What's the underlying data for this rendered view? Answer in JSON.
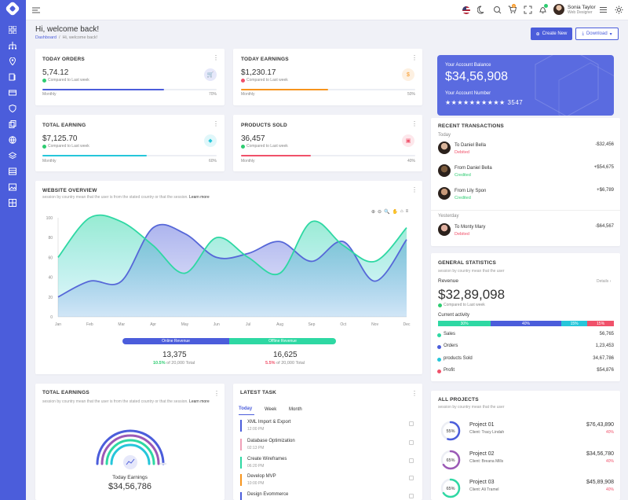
{
  "topbar": {
    "user_name": "Sonia Taylor",
    "user_role": "Web Designer",
    "cart_badge": "5"
  },
  "page": {
    "title": "Hi, welcome back!",
    "breadcrumb_home": "Dashboard",
    "breadcrumb_current": "Hi, welcome back!",
    "create_label": "Create New",
    "download_label": "Download"
  },
  "stats": [
    {
      "title": "TODAY ORDERS",
      "value": "5,74.12",
      "compare": "Compared to Last week",
      "bar_label": "Monthly",
      "percent": "70%",
      "fill": 0.7,
      "color": "#4b5ddb",
      "trend": "up"
    },
    {
      "title": "TODAY EARNINGS",
      "value": "$1,230.17",
      "compare": "Compared to Last week",
      "bar_label": "Monthly",
      "percent": "50%",
      "fill": 0.5,
      "color": "#f7941d",
      "trend": "down"
    },
    {
      "title": "TOTAL EARNING",
      "value": "$7,125.70",
      "compare": "Compared to Last week",
      "bar_label": "Monthly",
      "percent": "60%",
      "fill": 0.6,
      "color": "#26c6da",
      "trend": "up"
    },
    {
      "title": "PRODUCTS SOLD",
      "value": "36,457",
      "compare": "Compared to Last week",
      "bar_label": "Monthly",
      "percent": "40%",
      "fill": 0.4,
      "color": "#f0516a",
      "trend": "up"
    }
  ],
  "overview": {
    "title": "WEBSITE OVERVIEW",
    "subtitle": "session by country mean that the user is from the stated country or that the session.",
    "learn_more": "Learn more",
    "online_label": "Online Revenue",
    "offline_label": "Offline Revenue",
    "online_value": "13,375",
    "online_pct": "10.5%",
    "online_target": "of 20,000 Total",
    "offline_value": "16,625",
    "offline_pct": "5.5%",
    "offline_target": "of 20,000 Total"
  },
  "chart_data": {
    "type": "area",
    "categories": [
      "Jan",
      "Feb",
      "Mar",
      "Apr",
      "May",
      "Jun",
      "Jul",
      "Aug",
      "Sep",
      "Oct",
      "Nov",
      "Dec"
    ],
    "yticks": [
      "0",
      "20",
      "40",
      "60",
      "80",
      "100"
    ],
    "ylim": [
      0,
      100
    ],
    "series": [
      {
        "values": [
          20,
          36,
          36,
          90,
          84,
          60,
          64,
          76,
          56,
          76,
          36,
          78
        ],
        "color": "#5667d8"
      },
      {
        "values": [
          60,
          100,
          96,
          72,
          44,
          80,
          60,
          44,
          96,
          72,
          56,
          90
        ],
        "color": "#2ed8a3"
      }
    ]
  },
  "balance": {
    "label": "Your Account Balance",
    "amount": "$34,56,908",
    "number_label": "Your Account Number",
    "number": "★★★★★★★★★★ 3547"
  },
  "transactions": {
    "title": "RECENT TRANSACTIONS",
    "groups": [
      "Today",
      "Yesterday"
    ],
    "items": [
      {
        "name": "To Daniel Bella",
        "status": "Debited",
        "amount": "-$32,456",
        "status_color": "#f0516a"
      },
      {
        "name": "From Daniel Bella",
        "status": "Credited",
        "amount": "+$54,675",
        "status_color": "#2ecc71"
      },
      {
        "name": "From Lily Spon",
        "status": "Credited",
        "amount": "+$6,789",
        "status_color": "#2ecc71"
      },
      {
        "name": "To Monty Mary",
        "status": "Debited",
        "amount": "-$64,567",
        "status_color": "#f0516a"
      }
    ]
  },
  "general": {
    "title": "GENERAL STATISTICS",
    "subtitle": "session by country mean that the user",
    "revenue_label": "Revenue",
    "details": "Details ›",
    "revenue": "$32,89,098",
    "compare": "Compared to Last week",
    "activity_label": "Current activity",
    "activity": [
      {
        "pct": "30%",
        "fill": 0.3,
        "color": "#2ed8a3"
      },
      {
        "pct": "40%",
        "fill": 0.4,
        "color": "#4b5ddb"
      },
      {
        "pct": "15%",
        "fill": 0.15,
        "color": "#26c6da"
      },
      {
        "pct": "15%",
        "fill": 0.15,
        "color": "#f0516a"
      }
    ],
    "rows": [
      {
        "label": "Sales",
        "value": "56,765",
        "color": "#2ed8a3"
      },
      {
        "label": "Orders",
        "value": "1,23,453",
        "color": "#4b5ddb"
      },
      {
        "label": "products Sold",
        "value": "34,67,786",
        "color": "#26c6da"
      },
      {
        "label": "Profit",
        "value": "$54,876",
        "color": "#f0516a"
      }
    ]
  },
  "total_earnings": {
    "title": "TOTAL EARNINGS",
    "subtitle": "session by country mean that the user is from the stated country or that the session.",
    "learn_more": "Learn more",
    "label": "Today Earnings",
    "value": "$34,56,786"
  },
  "tasks": {
    "title": "LATEST TASK",
    "tabs": [
      "Today",
      "Week",
      "Month"
    ],
    "items": [
      {
        "title": "XML Import & Export",
        "time": "12:00 PM",
        "color": "#4b5ddb"
      },
      {
        "title": "Database Optimization",
        "time": "02:13 PM",
        "color": "#f0a0b8"
      },
      {
        "title": "Create Wireframes",
        "time": "06:20 PM",
        "color": "#2ed8a3"
      },
      {
        "title": "Develop MVP",
        "time": "10:00 PM",
        "color": "#f7941d"
      },
      {
        "title": "Design Evommerce",
        "time": "",
        "color": "#4b5ddb"
      }
    ]
  },
  "projects": {
    "title": "ALL PROJECTS",
    "subtitle": "session by country mean that the user",
    "items": [
      {
        "name": "Project 01",
        "client": "Client: Tracy Lindah",
        "amount": "$76,43,890",
        "pct": "40%",
        "ring": "55%",
        "fill": 0.55,
        "color": "#4b5ddb"
      },
      {
        "name": "Project 02",
        "client": "Client: Breana Mills",
        "amount": "$34,56,780",
        "pct": "40%",
        "ring": "65%",
        "fill": 0.65,
        "color": "#9b59b6"
      },
      {
        "name": "Project 03",
        "client": "Client: Ali Tramel",
        "amount": "$45,89,908",
        "pct": "40%",
        "ring": "65%",
        "fill": 0.65,
        "color": "#2ed8a3"
      }
    ]
  }
}
